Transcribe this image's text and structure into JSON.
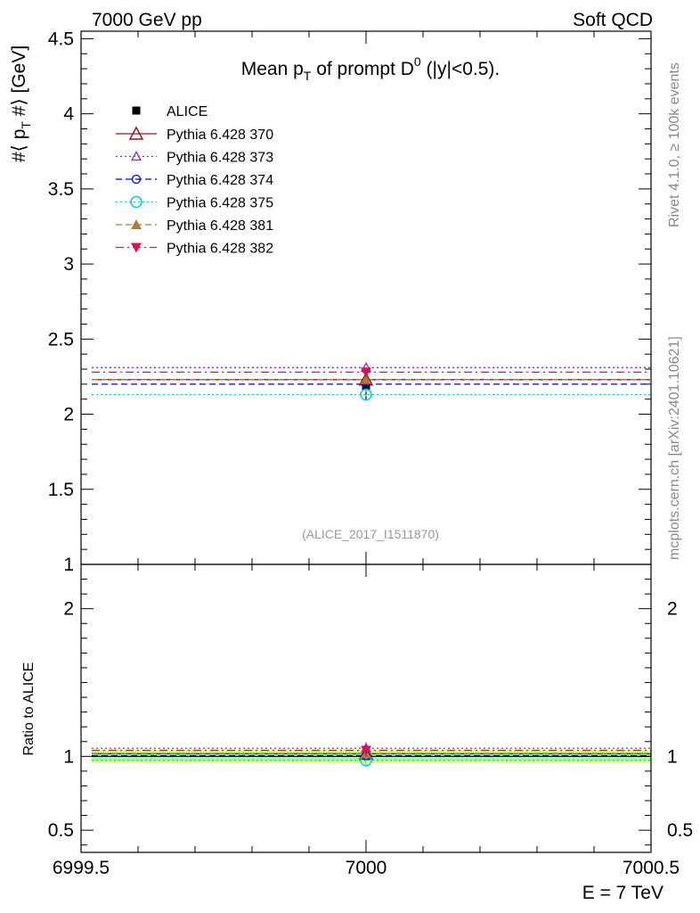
{
  "header": {
    "left": "7000 GeV pp",
    "right": "Soft QCD"
  },
  "side_labels": {
    "rivet": "Rivet 4.1.0, ≥ 100k events",
    "mcplots": "mcplots.cern.ch [arXiv:2401.10621]"
  },
  "chart_data": [
    {
      "type": "line",
      "panel": "main",
      "title": "Mean p_T of prompt D^0 (|y|<0.5).",
      "ylabel": "#⟨ p_T #⟩ [GeV]",
      "xlabel": "E = 7 TeV",
      "xlim": [
        6999.5,
        7000.5
      ],
      "ylim": [
        1.0,
        4.55
      ],
      "xticks": [
        "6999.5",
        "7000",
        "7000.5"
      ],
      "yticks": [
        "1",
        "1.5",
        "2",
        "2.5",
        "3",
        "3.5",
        "4",
        "4.5"
      ],
      "watermark": "(ALICE_2017_I1511870)",
      "legend_position": "top-left",
      "data": {
        "name": "ALICE",
        "x": 7000,
        "y": 2.19,
        "yerr": 0.1
      },
      "series": [
        {
          "name": "Pythia 6.428 370",
          "x": 7000,
          "y": 2.23,
          "yerr": 0.03,
          "color": "#8b1a1a",
          "marker": "triangle-open",
          "line": "solid"
        },
        {
          "name": "Pythia 6.428 373",
          "x": 7000,
          "y": 2.31,
          "yerr": 0.03,
          "color": "#8a2be2",
          "marker": "triangle-open-small",
          "line": "dotted"
        },
        {
          "name": "Pythia 6.428 374",
          "x": 7000,
          "y": 2.2,
          "yerr": 0.03,
          "color": "#0000dd",
          "marker": "circle-open-small",
          "line": "dashed"
        },
        {
          "name": "Pythia 6.428 375",
          "x": 7000,
          "y": 2.13,
          "yerr": 0.03,
          "color": "#00cfcf",
          "marker": "circle-open",
          "line": "dotted"
        },
        {
          "name": "Pythia 6.428 381",
          "x": 7000,
          "y": 2.23,
          "yerr": 0.03,
          "color": "#b07840",
          "marker": "triangle-filled",
          "line": "dashed"
        },
        {
          "name": "Pythia 6.428 382",
          "x": 7000,
          "y": 2.28,
          "yerr": 0.03,
          "color": "#dd1050",
          "marker": "triangle-down-filled",
          "line": "dashdot"
        }
      ]
    },
    {
      "type": "line",
      "panel": "ratio",
      "ylabel": "Ratio to ALICE",
      "xlim": [
        6999.5,
        7000.5
      ],
      "ylim": [
        0.35,
        2.3
      ],
      "yticks": [
        "0.5",
        "1",
        "2"
      ],
      "band": {
        "inner": [
          0.97,
          1.03
        ],
        "outer": [
          0.955,
          1.045
        ]
      },
      "ratios": [
        1.018,
        1.055,
        1.005,
        0.973,
        1.018,
        1.041
      ]
    }
  ]
}
